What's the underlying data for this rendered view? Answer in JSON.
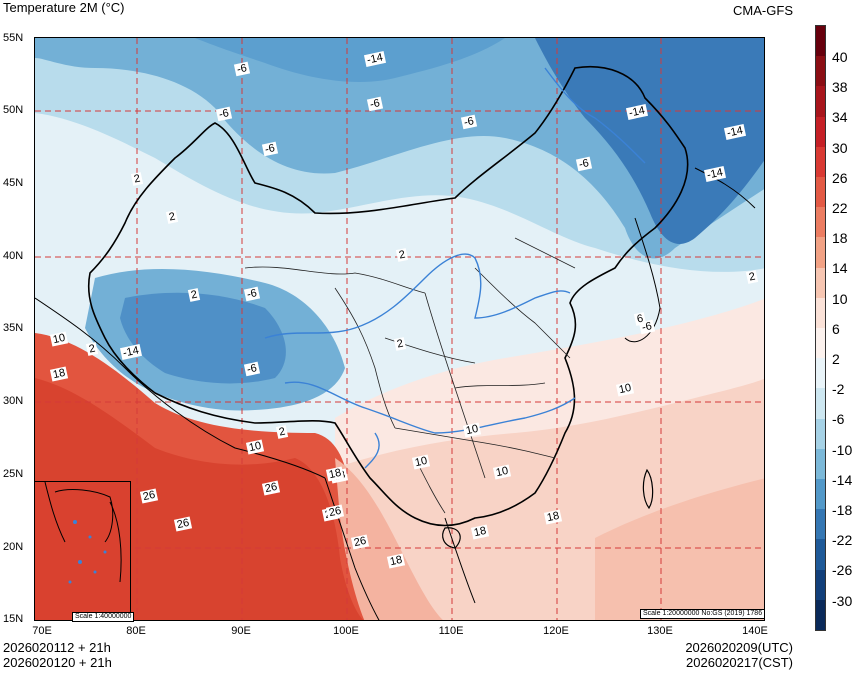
{
  "header": {
    "title": "Temperature  2M (°C)",
    "source": "CMA-GFS"
  },
  "footer": {
    "init_utc": "2026020112 + 21h",
    "init_cst": "2026020120 + 21h",
    "valid_utc": "2026020209(UTC)",
    "valid_cst": "2026020217(CST)"
  },
  "latitude_labels": [
    "55N",
    "50N",
    "45N",
    "40N",
    "35N",
    "30N",
    "25N",
    "20N",
    "15N"
  ],
  "longitude_labels": [
    "70E",
    "80E",
    "90E",
    "100E",
    "110E",
    "120E",
    "130E",
    "140E"
  ],
  "colorbar": {
    "labels": [
      "40",
      "38",
      "34",
      "30",
      "26",
      "22",
      "18",
      "14",
      "10",
      "6",
      "2",
      "-2",
      "-6",
      "-10",
      "-14",
      "-18",
      "-22",
      "-26",
      "-30"
    ],
    "colors": [
      "#67000d",
      "#8b0e14",
      "#a8151c",
      "#c52026",
      "#d93a33",
      "#e35a45",
      "#ec7d62",
      "#f2a285",
      "#f7c6b2",
      "#fbe2d8",
      "#fcf2ee",
      "#e9f4f9",
      "#cde7f1",
      "#a6d2e6",
      "#7cb9d9",
      "#5399c9",
      "#3577b3",
      "#1f5a99",
      "#123f7a",
      "#0a2a5a"
    ]
  },
  "contour_labels": [
    "-14",
    "-6",
    "-6",
    "-6",
    "-6",
    "-6",
    "-14",
    "-14",
    "-6",
    "-14",
    "2",
    "2",
    "2",
    "2",
    "-6",
    "2",
    "-14",
    "2",
    "-6",
    "10",
    "10",
    "18",
    "10",
    "2",
    "10",
    "10",
    "10",
    "18",
    "26",
    "26",
    "26",
    "26",
    "18",
    "26",
    "26",
    "18",
    "18",
    "18",
    "6",
    "2",
    "-6"
  ],
  "scale_labels": {
    "inset": "Scale 1:40000000",
    "main": "Scale 1:20000000 No:GS (2019) 1786"
  },
  "map_colors": {
    "cold_deep": "#3a7ab8",
    "cold_mid": "#73b0d6",
    "cold_light": "#b8dcec",
    "near_zero": "#e4f1f7",
    "mild": "#fbe8e2",
    "warm": "#f4b3a0",
    "hot": "#e2553f",
    "hottest": "#c9322b",
    "grid": "#d43a3a",
    "border": "#000000",
    "river": "#3b82d6"
  }
}
